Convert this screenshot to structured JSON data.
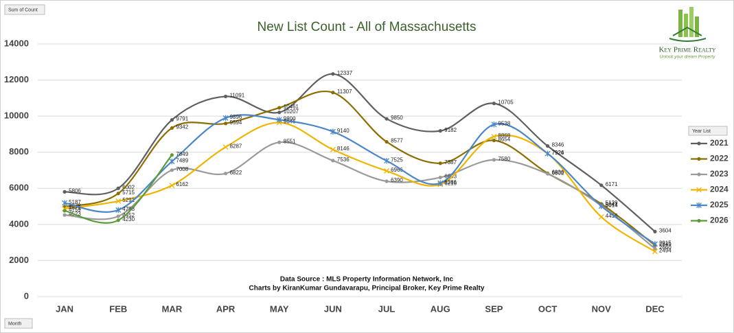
{
  "chart_data": {
    "type": "line",
    "title": "New List Count - All of Massachusetts",
    "value_field": "Sum of Count",
    "axis_field": "Month",
    "legend_title": "Year List",
    "annotations": [
      "Data Source : MLS Property Information Network, Inc",
      "Charts by KiranKumar Gundavarapu, Principal Broker, Key Prime Realty"
    ],
    "logo": {
      "name": "Key Prime Realty",
      "tagline": "Unlock your dream Property"
    },
    "categories": [
      "JAN",
      "FEB",
      "MAR",
      "APR",
      "MAY",
      "JUN",
      "JUL",
      "AUG",
      "SEP",
      "OCT",
      "NOV",
      "DEC"
    ],
    "ylim": [
      0,
      14000
    ],
    "yticks": [
      0,
      2000,
      4000,
      6000,
      8000,
      10000,
      12000,
      14000
    ],
    "grid": true,
    "legend": "right",
    "series": [
      {
        "name": "2021",
        "color": "#5f5f5f",
        "marker": "circle",
        "values": [
          5806,
          6002,
          9791,
          11091,
          10207,
          12337,
          9850,
          9182,
          10705,
          8346,
          6171,
          3604
        ]
      },
      {
        "name": "2022",
        "color": "#8c6d00",
        "marker": "circle",
        "values": [
          4978,
          5715,
          9342,
          9594,
          10461,
          11307,
          8577,
          7387,
          8654,
          6836,
          5139,
          2845
        ]
      },
      {
        "name": "2023",
        "color": "#9a9a9a",
        "marker": "circle",
        "values": [
          4523,
          4452,
          7008,
          6822,
          8551,
          7536,
          6390,
          6603,
          7580,
          6802,
          5041,
          2660
        ]
      },
      {
        "name": "2024",
        "color": "#f0b400",
        "marker": "x",
        "values": [
          4871,
          5291,
          6162,
          8287,
          9645,
          8146,
          6966,
          6216,
          8868,
          7924,
          4416,
          2494
        ]
      },
      {
        "name": "2025",
        "color": "#4a86c8",
        "marker": "star",
        "values": [
          5187,
          4798,
          7489,
          9896,
          9800,
          9140,
          7525,
          6286,
          9538,
          7926,
          5014,
          2915
        ]
      },
      {
        "name": "2026",
        "color": "#5b9b3a",
        "marker": "circle",
        "values": [
          4759,
          4230,
          7849,
          null,
          null,
          null,
          null,
          null,
          null,
          null,
          null,
          null
        ]
      }
    ]
  }
}
